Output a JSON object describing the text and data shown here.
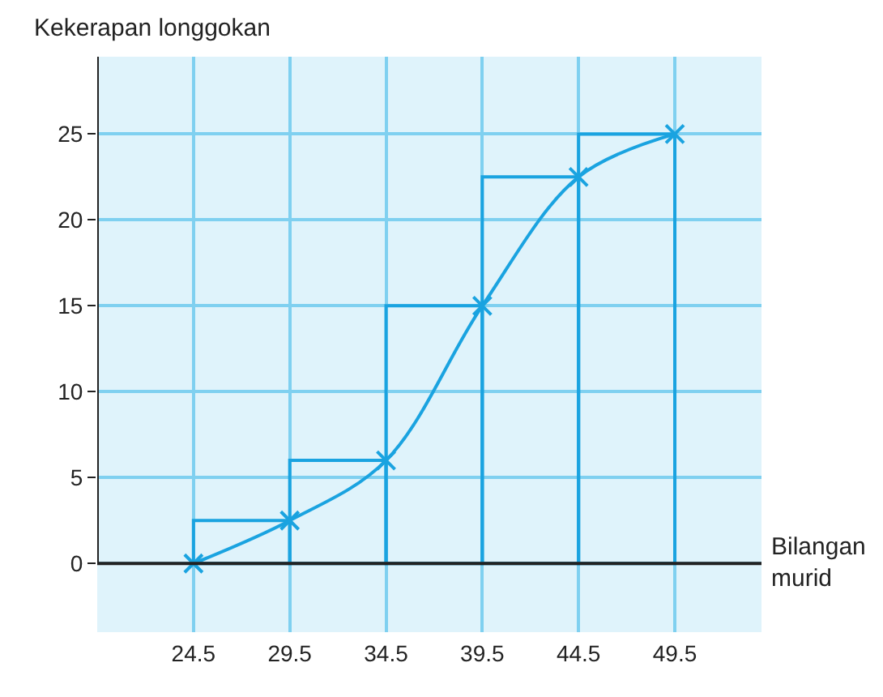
{
  "chart_data": {
    "type": "line",
    "xlabel": "Bilangan murid",
    "ylabel": "Kekerapan longgokan",
    "x": [
      24.5,
      29.5,
      34.5,
      39.5,
      44.5,
      49.5
    ],
    "series": [
      {
        "type": "bar",
        "color": "#1aa3e0",
        "x": [
          27,
          32,
          37,
          42,
          47
        ],
        "values": [
          2.5,
          6,
          15,
          22.5,
          25
        ]
      },
      {
        "color": "#1aa3e0",
        "values": [
          0,
          2.5,
          6,
          15,
          22.5,
          25
        ],
        "marker": "cross"
      }
    ],
    "xlim": [
      19.5,
      54
    ],
    "ylim": [
      -4,
      29.5
    ],
    "xticks": [
      24.5,
      29.5,
      34.5,
      39.5,
      44.5,
      49.5
    ],
    "yticks": [
      0,
      5,
      10,
      15,
      20,
      25
    ],
    "grid": true,
    "legend": false
  }
}
